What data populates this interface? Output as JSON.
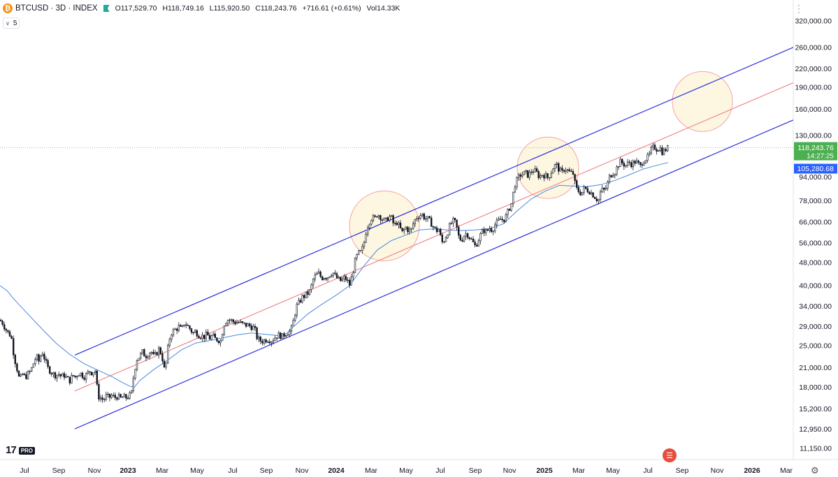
{
  "header": {
    "title": "BTCUSD · 3D · INDEX",
    "open": "O117,529.70",
    "high": "H118,749.16",
    "low": "L115,920.50",
    "close": "C118,243.76",
    "change": "+716.61 (+0.61%)",
    "volume": "Vol14.33K",
    "logo_glyph": "₿",
    "sub_value": "5",
    "sub_icon": "chevron-down-icon"
  },
  "branding": {
    "logo_text": "17",
    "pro_badge": "PRO"
  },
  "colors": {
    "up": "#26a69a",
    "candle": "#131722",
    "ma": "#4a89dc",
    "channel": "#2a2ee0",
    "median": "#f08a8a",
    "circle_fill": "#fdf6dc",
    "circle_stroke": "#f3a3a3",
    "price_label": "#4caf50",
    "ma_label": "#2962ff"
  },
  "chart_data": {
    "type": "candlestick",
    "scale": "log",
    "ylim": [
      10800,
      340000
    ],
    "x_labels": [
      "Jul",
      "Sep",
      "Nov",
      "2023",
      "Mar",
      "May",
      "Jul",
      "Sep",
      "Nov",
      "2024",
      "Mar",
      "May",
      "Jul",
      "Sep",
      "Nov",
      "2025",
      "Mar",
      "May",
      "Jul",
      "Sep",
      "Nov",
      "2026",
      "Mar"
    ],
    "y_ticks": [
      "320,000.00",
      "260,000.00",
      "220,000.00",
      "190,000.00",
      "160,000.00",
      "130,000.00",
      "94,000.00",
      "78,000.00",
      "66,000.00",
      "56,000.00",
      "48,000.00",
      "40,000.00",
      "34,000.00",
      "29,000.00",
      "25,000.00",
      "21,000.00",
      "18,000.00",
      "15,200.00",
      "12,950.00",
      "11,150.00"
    ],
    "y_tick_values": [
      320000,
      260000,
      220000,
      190000,
      160000,
      130000,
      94000,
      78000,
      66000,
      56000,
      48000,
      40000,
      34000,
      29000,
      25000,
      21000,
      18000,
      15200,
      12950,
      11150
    ],
    "last_price": 118243.76,
    "last_price_label": "118,243.76",
    "countdown": "14:27:25",
    "ma_value": 105280.68,
    "ma_label": "105,280.68",
    "price_path": [
      [
        0,
        30500
      ],
      [
        4,
        29800
      ],
      [
        8,
        28500
      ],
      [
        12,
        27500
      ],
      [
        16,
        27000
      ],
      [
        20,
        23000
      ],
      [
        24,
        21000
      ],
      [
        28,
        19000
      ],
      [
        32,
        20000
      ],
      [
        36,
        19500
      ],
      [
        40,
        20000
      ],
      [
        44,
        20500
      ],
      [
        48,
        21800
      ],
      [
        52,
        23000
      ],
      [
        56,
        22000
      ],
      [
        60,
        24000
      ],
      [
        64,
        22500
      ],
      [
        68,
        21000
      ],
      [
        72,
        20500
      ],
      [
        76,
        20000
      ],
      [
        80,
        19800
      ],
      [
        84,
        20000
      ],
      [
        88,
        19600
      ],
      [
        92,
        19800
      ],
      [
        96,
        19300
      ],
      [
        100,
        19000
      ],
      [
        104,
        19800
      ],
      [
        108,
        19500
      ],
      [
        112,
        20200
      ],
      [
        116,
        20000
      ],
      [
        120,
        19600
      ],
      [
        124,
        19900
      ],
      [
        128,
        20500
      ],
      [
        132,
        20200
      ],
      [
        136,
        20700
      ],
      [
        138,
        19000
      ],
      [
        140,
        16800
      ],
      [
        144,
        16600
      ],
      [
        148,
        16300
      ],
      [
        152,
        16800
      ],
      [
        156,
        16600
      ],
      [
        160,
        16900
      ],
      [
        164,
        16600
      ],
      [
        168,
        16800
      ],
      [
        172,
        16500
      ],
      [
        176,
        16700
      ],
      [
        180,
        16600
      ],
      [
        184,
        16800
      ],
      [
        188,
        17100
      ],
      [
        192,
        20500
      ],
      [
        196,
        22500
      ],
      [
        200,
        23000
      ],
      [
        204,
        23800
      ],
      [
        208,
        23000
      ],
      [
        212,
        23500
      ],
      [
        216,
        24000
      ],
      [
        220,
        22800
      ],
      [
        224,
        23600
      ],
      [
        228,
        24500
      ],
      [
        232,
        22800
      ],
      [
        236,
        20200
      ],
      [
        240,
        24300
      ],
      [
        244,
        27500
      ],
      [
        248,
        28000
      ],
      [
        252,
        28500
      ],
      [
        256,
        29000
      ],
      [
        260,
        28200
      ],
      [
        264,
        30000
      ],
      [
        268,
        29200
      ],
      [
        272,
        28500
      ],
      [
        276,
        27500
      ],
      [
        280,
        28000
      ],
      [
        284,
        27200
      ],
      [
        288,
        27000
      ],
      [
        292,
        26800
      ],
      [
        296,
        27300
      ],
      [
        300,
        26500
      ],
      [
        304,
        27000
      ],
      [
        308,
        26300
      ],
      [
        312,
        26200
      ],
      [
        316,
        25900
      ],
      [
        320,
        29500
      ],
      [
        324,
        30500
      ],
      [
        328,
        30700
      ],
      [
        332,
        30300
      ],
      [
        336,
        30000
      ],
      [
        340,
        30100
      ],
      [
        344,
        29800
      ],
      [
        348,
        29500
      ],
      [
        352,
        29400
      ],
      [
        356,
        29300
      ],
      [
        360,
        29000
      ],
      [
        364,
        28700
      ],
      [
        368,
        26500
      ],
      [
        372,
        26000
      ],
      [
        376,
        25900
      ],
      [
        380,
        26200
      ],
      [
        384,
        26300
      ],
      [
        388,
        26000
      ],
      [
        392,
        26500
      ],
      [
        396,
        27000
      ],
      [
        400,
        27200
      ],
      [
        404,
        26800
      ],
      [
        408,
        27500
      ],
      [
        412,
        27800
      ],
      [
        416,
        28000
      ],
      [
        420,
        30500
      ],
      [
        424,
        34000
      ],
      [
        428,
        35000
      ],
      [
        432,
        36500
      ],
      [
        436,
        37000
      ],
      [
        440,
        37600
      ],
      [
        444,
        38500
      ],
      [
        448,
        42000
      ],
      [
        452,
        43500
      ],
      [
        456,
        44000
      ],
      [
        460,
        42500
      ],
      [
        464,
        43000
      ],
      [
        468,
        42700
      ],
      [
        472,
        43800
      ],
      [
        476,
        44500
      ],
      [
        480,
        43000
      ],
      [
        484,
        42000
      ],
      [
        488,
        41500
      ],
      [
        492,
        42500
      ],
      [
        496,
        42000
      ],
      [
        500,
        40200
      ],
      [
        504,
        43500
      ],
      [
        508,
        48500
      ],
      [
        512,
        51500
      ],
      [
        516,
        52000
      ],
      [
        520,
        54500
      ],
      [
        524,
        62000
      ],
      [
        528,
        66000
      ],
      [
        532,
        68500
      ],
      [
        536,
        67500
      ],
      [
        540,
        70500
      ],
      [
        544,
        69000
      ],
      [
        548,
        67000
      ],
      [
        552,
        66500
      ],
      [
        556,
        69000
      ],
      [
        560,
        68000
      ],
      [
        564,
        64000
      ],
      [
        568,
        66000
      ],
      [
        572,
        63000
      ],
      [
        576,
        60500
      ],
      [
        580,
        63500
      ],
      [
        584,
        62000
      ],
      [
        588,
        61500
      ],
      [
        592,
        66000
      ],
      [
        596,
        68500
      ],
      [
        600,
        69500
      ],
      [
        604,
        70000
      ],
      [
        608,
        68000
      ],
      [
        612,
        67500
      ],
      [
        616,
        66000
      ],
      [
        620,
        63500
      ],
      [
        624,
        61500
      ],
      [
        628,
        62500
      ],
      [
        632,
        56000
      ],
      [
        636,
        57500
      ],
      [
        640,
        60500
      ],
      [
        644,
        64500
      ],
      [
        648,
        66500
      ],
      [
        652,
        65500
      ],
      [
        656,
        59000
      ],
      [
        660,
        57000
      ],
      [
        664,
        59500
      ],
      [
        668,
        60500
      ],
      [
        672,
        58500
      ],
      [
        676,
        56500
      ],
      [
        680,
        54500
      ],
      [
        684,
        57000
      ],
      [
        688,
        60000
      ],
      [
        692,
        62000
      ],
      [
        696,
        61000
      ],
      [
        700,
        63000
      ],
      [
        704,
        62000
      ],
      [
        708,
        64500
      ],
      [
        712,
        66000
      ],
      [
        716,
        67500
      ],
      [
        720,
        67000
      ],
      [
        724,
        69000
      ],
      [
        728,
        73000
      ],
      [
        732,
        76500
      ],
      [
        736,
        88000
      ],
      [
        740,
        92000
      ],
      [
        744,
        95500
      ],
      [
        748,
        96000
      ],
      [
        752,
        97000
      ],
      [
        756,
        95000
      ],
      [
        760,
        98500
      ],
      [
        764,
        99000
      ],
      [
        768,
        97000
      ],
      [
        772,
        94000
      ],
      [
        776,
        96000
      ],
      [
        780,
        95000
      ],
      [
        784,
        93500
      ],
      [
        788,
        97000
      ],
      [
        792,
        102000
      ],
      [
        796,
        103500
      ],
      [
        800,
        99500
      ],
      [
        804,
        97000
      ],
      [
        808,
        101000
      ],
      [
        812,
        99000
      ],
      [
        816,
        97000
      ],
      [
        820,
        96500
      ],
      [
        824,
        86000
      ],
      [
        828,
        84000
      ],
      [
        832,
        82500
      ],
      [
        836,
        86000
      ],
      [
        840,
        85000
      ],
      [
        844,
        84000
      ],
      [
        848,
        82000
      ],
      [
        852,
        80000
      ],
      [
        856,
        78000
      ],
      [
        860,
        85000
      ],
      [
        864,
        84500
      ],
      [
        868,
        87000
      ],
      [
        872,
        94000
      ],
      [
        876,
        97000
      ],
      [
        880,
        98000
      ],
      [
        884,
        103000
      ],
      [
        888,
        106000
      ],
      [
        892,
        104000
      ],
      [
        896,
        103000
      ],
      [
        900,
        105500
      ],
      [
        904,
        104000
      ],
      [
        908,
        106000
      ],
      [
        912,
        105000
      ],
      [
        916,
        102000
      ],
      [
        920,
        107000
      ],
      [
        924,
        108500
      ],
      [
        928,
        110000
      ],
      [
        932,
        117000
      ],
      [
        936,
        119000
      ],
      [
        940,
        117000
      ],
      [
        944,
        118500
      ],
      [
        948,
        114000
      ],
      [
        952,
        116500
      ],
      [
        956,
        118243.76
      ]
    ],
    "ma_path": [
      [
        0,
        40000
      ],
      [
        10,
        38500
      ],
      [
        20,
        36000
      ],
      [
        40,
        32000
      ],
      [
        60,
        28500
      ],
      [
        80,
        25500
      ],
      [
        100,
        23300
      ],
      [
        120,
        21700
      ],
      [
        140,
        20600
      ],
      [
        160,
        19600
      ],
      [
        175,
        18700
      ],
      [
        185,
        18200
      ],
      [
        192,
        18000
      ],
      [
        200,
        19000
      ],
      [
        220,
        20700
      ],
      [
        240,
        22300
      ],
      [
        260,
        24200
      ],
      [
        280,
        25500
      ],
      [
        300,
        26000
      ],
      [
        320,
        26600
      ],
      [
        340,
        27200
      ],
      [
        360,
        27600
      ],
      [
        380,
        27300
      ],
      [
        400,
        27000
      ],
      [
        410,
        27500
      ],
      [
        420,
        29000
      ],
      [
        440,
        32000
      ],
      [
        460,
        34500
      ],
      [
        480,
        37000
      ],
      [
        500,
        40000
      ],
      [
        520,
        46500
      ],
      [
        540,
        53000
      ],
      [
        560,
        57000
      ],
      [
        580,
        59500
      ],
      [
        600,
        62000
      ],
      [
        620,
        62500
      ],
      [
        640,
        62000
      ],
      [
        660,
        61700
      ],
      [
        680,
        62000
      ],
      [
        700,
        62600
      ],
      [
        720,
        65000
      ],
      [
        740,
        72000
      ],
      [
        760,
        79000
      ],
      [
        780,
        84000
      ],
      [
        800,
        88000
      ],
      [
        820,
        87500
      ],
      [
        840,
        87000
      ],
      [
        860,
        88500
      ],
      [
        880,
        91500
      ],
      [
        900,
        95500
      ],
      [
        920,
        100000
      ],
      [
        940,
        103000
      ],
      [
        956,
        105280.68
      ]
    ],
    "channel_upper": [
      [
        107,
        23200
      ],
      [
        1135,
        260000
      ]
    ],
    "channel_median": [
      [
        107,
        17500
      ],
      [
        1135,
        197000
      ]
    ],
    "channel_lower": [
      [
        107,
        13000
      ],
      [
        1135,
        147000
      ]
    ],
    "highlights": [
      [
        550,
        64000
      ],
      [
        784,
        101000
      ],
      [
        1005,
        170000
      ]
    ]
  }
}
